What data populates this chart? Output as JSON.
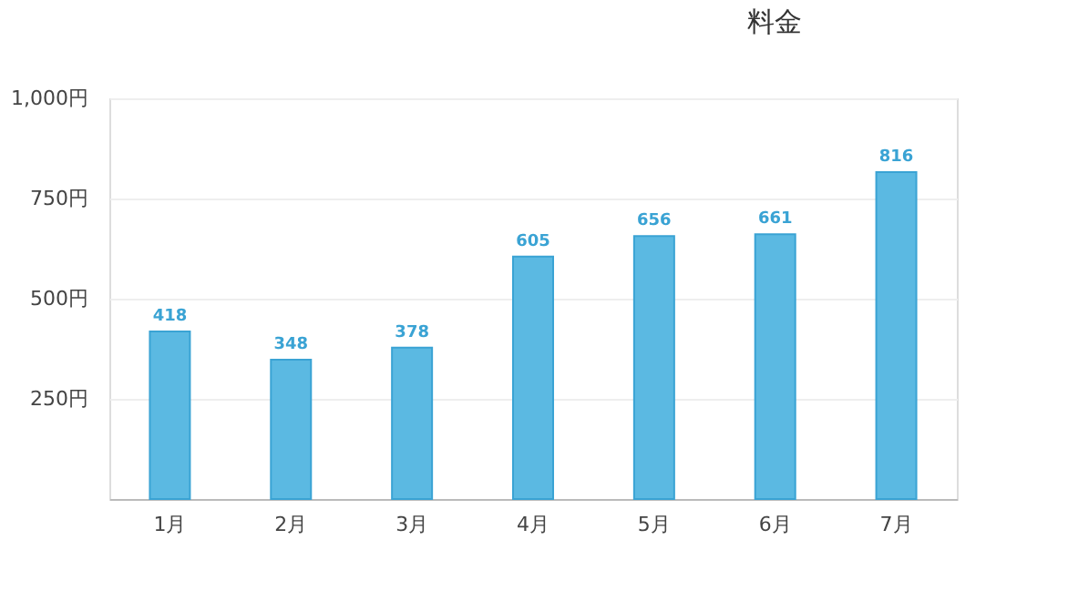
{
  "chart_data": {
    "type": "bar",
    "title": "料金",
    "categories": [
      "1月",
      "2月",
      "3月",
      "4月",
      "5月",
      "6月",
      "7月"
    ],
    "values": [
      418,
      348,
      378,
      605,
      656,
      661,
      816
    ],
    "color": "#5bb9e2",
    "ylim": [
      0,
      1000
    ],
    "yticks": [
      {
        "value": 0,
        "label": null
      },
      {
        "value": 250,
        "label": "250円"
      },
      {
        "value": 500,
        "label": "500円"
      },
      {
        "value": 750,
        "label": "750円"
      },
      {
        "value": 1000,
        "label": "1,000円"
      }
    ],
    "grid": "y",
    "data_labels": true
  }
}
